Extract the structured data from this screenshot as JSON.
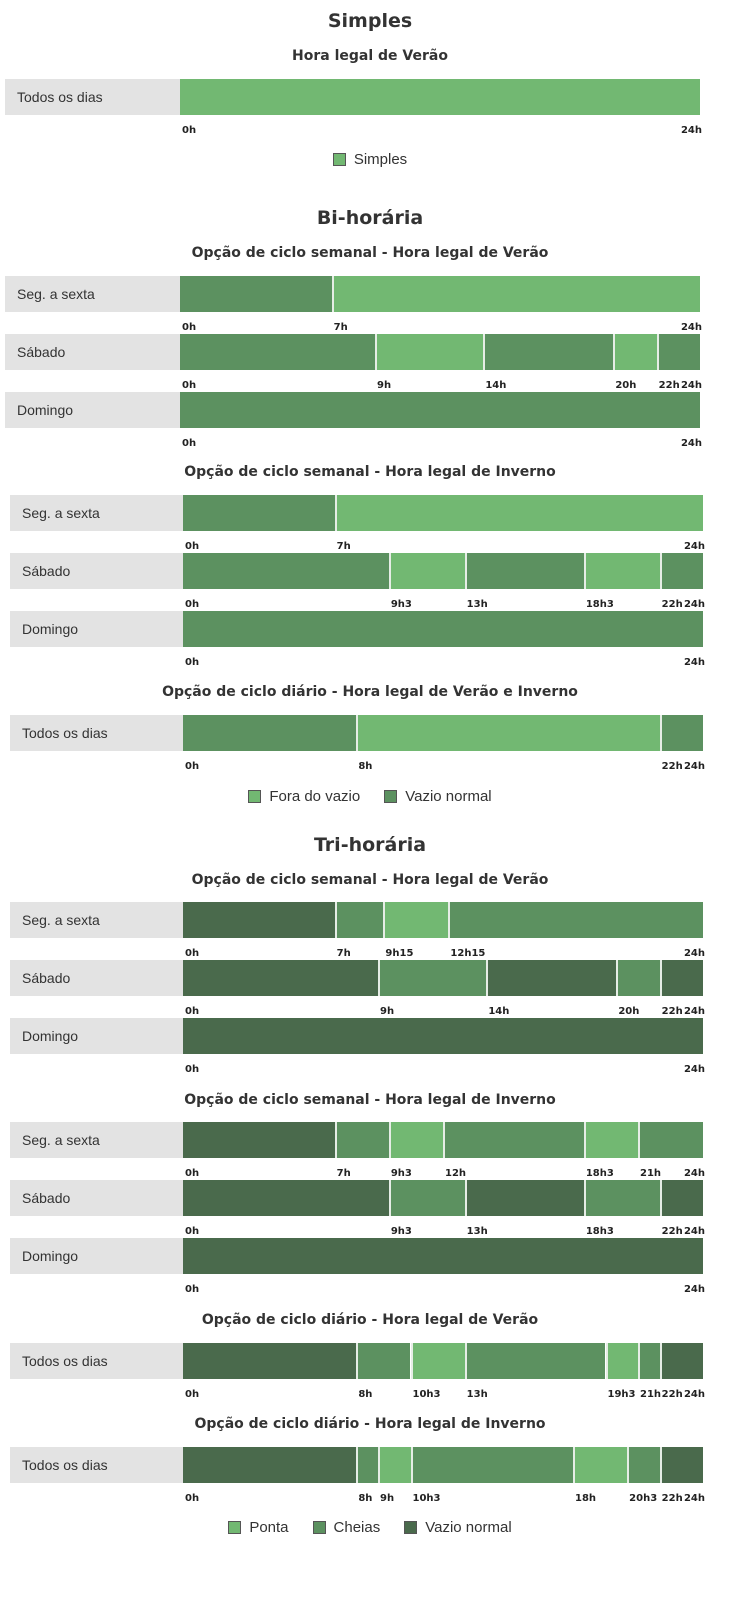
{
  "colors": {
    "light": "#72b872",
    "medium": "#5c9160",
    "dark": "#4a6a4c"
  },
  "chart_data": [
    {
      "type": "bar",
      "title": "Simples",
      "subtitle": "Hora legal de Verão",
      "rows": [
        {
          "label": "Todos os dias",
          "ticks": [
            "0h",
            "24h"
          ],
          "segments": [
            {
              "start": 0,
              "end": 24,
              "category": "light"
            }
          ]
        }
      ],
      "legend": [
        {
          "label": "Simples",
          "category": "light"
        }
      ]
    },
    {
      "type": "bar",
      "title": "Bi-horária",
      "subtitle": "Opção de ciclo semanal - Hora legal de Verão",
      "rows": [
        {
          "label": "Seg. a sexta",
          "ticks": [
            "0h",
            "7h",
            "24h"
          ],
          "segments": [
            {
              "start": 0,
              "end": 7,
              "category": "medium"
            },
            {
              "start": 7,
              "end": 24,
              "category": "light"
            }
          ]
        },
        {
          "label": "Sábado",
          "ticks": [
            "0h",
            "9h",
            "14h",
            "20h",
            "22h",
            "24h"
          ],
          "segments": [
            {
              "start": 0,
              "end": 9,
              "category": "medium"
            },
            {
              "start": 9,
              "end": 14,
              "category": "light"
            },
            {
              "start": 14,
              "end": 20,
              "category": "medium"
            },
            {
              "start": 20,
              "end": 22,
              "category": "light"
            },
            {
              "start": 22,
              "end": 24,
              "category": "medium"
            }
          ]
        },
        {
          "label": "Domingo",
          "ticks": [
            "0h",
            "24h"
          ],
          "segments": [
            {
              "start": 0,
              "end": 24,
              "category": "medium"
            }
          ]
        }
      ]
    },
    {
      "type": "bar",
      "subtitle": "Opção de ciclo semanal - Hora legal de Inverno",
      "rows": [
        {
          "label": "Seg. a sexta",
          "ticks": [
            "0h",
            "7h",
            "24h"
          ],
          "segments": [
            {
              "start": 0,
              "end": 7,
              "category": "medium"
            },
            {
              "start": 7,
              "end": 24,
              "category": "light"
            }
          ]
        },
        {
          "label": "Sábado",
          "ticks": [
            "0h",
            "9h3",
            "13h",
            "18h3",
            "22h",
            "24h"
          ],
          "segments": [
            {
              "start": 0,
              "end": 9.5,
              "category": "medium"
            },
            {
              "start": 9.5,
              "end": 13,
              "category": "light"
            },
            {
              "start": 13,
              "end": 18.5,
              "category": "medium"
            },
            {
              "start": 18.5,
              "end": 22,
              "category": "light"
            },
            {
              "start": 22,
              "end": 24,
              "category": "medium"
            }
          ]
        },
        {
          "label": "Domingo",
          "ticks": [
            "0h",
            "24h"
          ],
          "segments": [
            {
              "start": 0,
              "end": 24,
              "category": "medium"
            }
          ]
        }
      ]
    },
    {
      "type": "bar",
      "subtitle": "Opção de ciclo diário - Hora legal de Verão e Inverno",
      "rows": [
        {
          "label": "Todos os dias",
          "ticks": [
            "0h",
            "8h",
            "22h",
            "24h"
          ],
          "segments": [
            {
              "start": 0,
              "end": 8,
              "category": "medium"
            },
            {
              "start": 8,
              "end": 22,
              "category": "light"
            },
            {
              "start": 22,
              "end": 24,
              "category": "medium"
            }
          ]
        }
      ],
      "legend": [
        {
          "label": "Fora do vazio",
          "category": "light"
        },
        {
          "label": "Vazio normal",
          "category": "medium"
        }
      ]
    },
    {
      "type": "bar",
      "title": "Tri-horária",
      "subtitle": "Opção de ciclo semanal - Hora legal de Verão",
      "rows": [
        {
          "label": "Seg. a sexta",
          "ticks": [
            "0h",
            "7h",
            "9h15",
            "12h15",
            "24h"
          ],
          "segments": [
            {
              "start": 0,
              "end": 7,
              "category": "dark"
            },
            {
              "start": 7,
              "end": 9.25,
              "category": "medium"
            },
            {
              "start": 9.25,
              "end": 12.25,
              "category": "light"
            },
            {
              "start": 12.25,
              "end": 24,
              "category": "medium"
            }
          ]
        },
        {
          "label": "Sábado",
          "ticks": [
            "0h",
            "9h",
            "14h",
            "20h",
            "22h",
            "24h"
          ],
          "segments": [
            {
              "start": 0,
              "end": 9,
              "category": "dark"
            },
            {
              "start": 9,
              "end": 14,
              "category": "medium"
            },
            {
              "start": 14,
              "end": 20,
              "category": "dark"
            },
            {
              "start": 20,
              "end": 22,
              "category": "medium"
            },
            {
              "start": 22,
              "end": 24,
              "category": "dark"
            }
          ]
        },
        {
          "label": "Domingo",
          "ticks": [
            "0h",
            "24h"
          ],
          "segments": [
            {
              "start": 0,
              "end": 24,
              "category": "dark"
            }
          ]
        }
      ]
    },
    {
      "type": "bar",
      "subtitle": "Opção de ciclo semanal - Hora legal de Inverno",
      "rows": [
        {
          "label": "Seg. a sexta",
          "ticks": [
            "0h",
            "7h",
            "9h3",
            "12h",
            "18h3",
            "21h",
            "24h"
          ],
          "segments": [
            {
              "start": 0,
              "end": 7,
              "category": "dark"
            },
            {
              "start": 7,
              "end": 9.5,
              "category": "medium"
            },
            {
              "start": 9.5,
              "end": 12,
              "category": "light"
            },
            {
              "start": 12,
              "end": 18.5,
              "category": "medium"
            },
            {
              "start": 18.5,
              "end": 21,
              "category": "light"
            },
            {
              "start": 21,
              "end": 24,
              "category": "medium"
            }
          ]
        },
        {
          "label": "Sábado",
          "ticks": [
            "0h",
            "9h3",
            "13h",
            "18h3",
            "22h",
            "24h"
          ],
          "segments": [
            {
              "start": 0,
              "end": 9.5,
              "category": "dark"
            },
            {
              "start": 9.5,
              "end": 13,
              "category": "medium"
            },
            {
              "start": 13,
              "end": 18.5,
              "category": "dark"
            },
            {
              "start": 18.5,
              "end": 22,
              "category": "medium"
            },
            {
              "start": 22,
              "end": 24,
              "category": "dark"
            }
          ]
        },
        {
          "label": "Domingo",
          "ticks": [
            "0h",
            "24h"
          ],
          "segments": [
            {
              "start": 0,
              "end": 24,
              "category": "dark"
            }
          ]
        }
      ]
    },
    {
      "type": "bar",
      "subtitle": "Opção de ciclo diário - Hora legal de Verão",
      "rows": [
        {
          "label": "Todos os dias",
          "ticks": [
            "0h",
            "8h",
            "10h3",
            "13h",
            "19h3",
            "21h",
            "22h",
            "24h"
          ],
          "segments": [
            {
              "start": 0,
              "end": 8,
              "category": "dark"
            },
            {
              "start": 8,
              "end": 10.5,
              "category": "medium"
            },
            {
              "start": 10.5,
              "end": 13,
              "category": "light"
            },
            {
              "start": 13,
              "end": 19.5,
              "category": "medium"
            },
            {
              "start": 19.5,
              "end": 21,
              "category": "light"
            },
            {
              "start": 21,
              "end": 22,
              "category": "medium"
            },
            {
              "start": 22,
              "end": 24,
              "category": "dark"
            }
          ]
        }
      ]
    },
    {
      "type": "bar",
      "subtitle": "Opção de ciclo diário - Hora legal de Inverno",
      "rows": [
        {
          "label": "Todos os dias",
          "ticks": [
            "0h",
            "8h",
            "9h",
            "10h3",
            "18h",
            "20h3",
            "22h",
            "24h"
          ],
          "segments": [
            {
              "start": 0,
              "end": 8,
              "category": "dark"
            },
            {
              "start": 8,
              "end": 9,
              "category": "medium"
            },
            {
              "start": 9,
              "end": 10.5,
              "category": "light"
            },
            {
              "start": 10.5,
              "end": 18,
              "category": "medium"
            },
            {
              "start": 18,
              "end": 20.5,
              "category": "light"
            },
            {
              "start": 20.5,
              "end": 22,
              "category": "medium"
            },
            {
              "start": 22,
              "end": 24,
              "category": "dark"
            }
          ]
        }
      ],
      "legend": [
        {
          "label": "Ponta",
          "category": "light"
        },
        {
          "label": "Cheias",
          "category": "medium"
        },
        {
          "label": "Vazio normal",
          "category": "dark"
        }
      ]
    }
  ]
}
